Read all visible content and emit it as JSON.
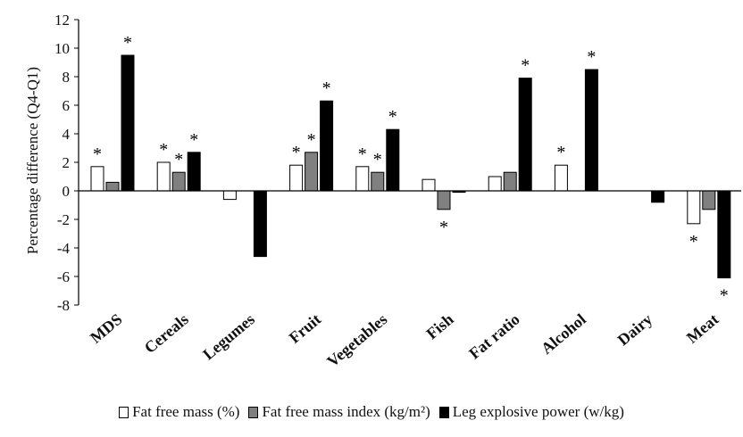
{
  "chart_data": {
    "type": "bar",
    "ylabel": "Percentage difference (Q4-Q1)",
    "ylim": [
      -8,
      12
    ],
    "yticks": [
      12,
      10,
      8,
      6,
      4,
      2,
      0,
      -2,
      -4,
      -6,
      -8
    ],
    "grid": false,
    "legend_position": "bottom",
    "categories": [
      "MDS",
      "Cereals",
      "Legumes",
      "Fruit",
      "Vegetables",
      "Fish",
      "Fat ratio",
      "Alcohol",
      "Dairy",
      "Meat"
    ],
    "series": [
      {
        "name": "Fat free mass (%)",
        "color": "#ffffff",
        "values": [
          1.7,
          2.0,
          -0.6,
          1.8,
          1.7,
          0.8,
          1.0,
          1.8,
          0,
          -2.3
        ],
        "significant": [
          true,
          true,
          false,
          true,
          true,
          false,
          false,
          true,
          false,
          true
        ]
      },
      {
        "name": "Fat free mass index (kg/m²)",
        "color": "#808080",
        "values": [
          0.6,
          1.3,
          0,
          2.7,
          1.3,
          -1.3,
          1.3,
          0,
          0,
          -1.3
        ],
        "significant": [
          false,
          true,
          false,
          true,
          true,
          true,
          false,
          false,
          false,
          false
        ]
      },
      {
        "name": "Leg explosive power (w/kg)",
        "color": "#000000",
        "values": [
          9.5,
          2.7,
          -4.6,
          6.3,
          4.3,
          -0.1,
          7.9,
          8.5,
          -0.8,
          -6.1
        ],
        "significant": [
          true,
          true,
          false,
          true,
          true,
          false,
          true,
          true,
          false,
          true
        ]
      }
    ],
    "significance_marker": "*"
  }
}
